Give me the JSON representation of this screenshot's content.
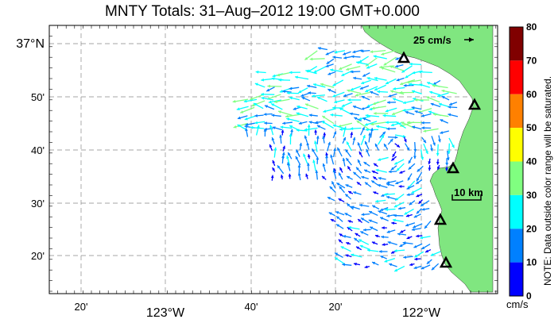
{
  "title": "MNTY Totals: 31–Aug–2012 19:00 GMT+0.000",
  "lon_labels": [
    {
      "text": "20'",
      "big": false
    },
    {
      "text": "123°W",
      "big": true
    },
    {
      "text": "40'",
      "big": false
    },
    {
      "text": "20'",
      "big": false
    },
    {
      "text": "122°W",
      "big": true
    }
  ],
  "lat_labels": [
    {
      "text": "37°N",
      "big": true
    },
    {
      "text": "50'",
      "big": false
    },
    {
      "text": "40'",
      "big": false
    },
    {
      "text": "30'",
      "big": false
    },
    {
      "text": "20'",
      "big": false
    }
  ],
  "vector_scale_label": "25 cm/s",
  "distance_scale_label": "10 km",
  "colorbar": {
    "ticks": [
      "80",
      "70",
      "60",
      "50",
      "40",
      "30",
      "20",
      "10",
      "0"
    ],
    "colors": [
      "#800000",
      "#ff0000",
      "#ff8000",
      "#ffff00",
      "#80ff80",
      "#00ffff",
      "#0080ff",
      "#0000ff"
    ],
    "units": "cm/s",
    "note": "NOTE: Data outside color range will be saturated."
  },
  "colors": {
    "land": "#80e680",
    "water": "#ffffff",
    "grid": "#888888"
  }
}
